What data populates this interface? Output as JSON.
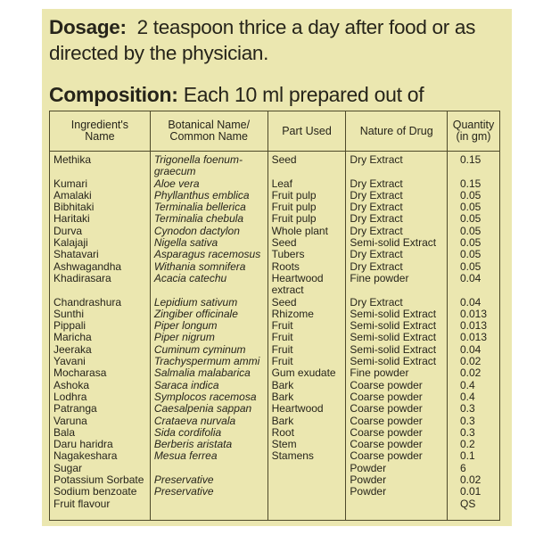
{
  "dosage": {
    "label": "Dosage:",
    "text": "2 teaspoon thrice a day after food or as directed by the physician."
  },
  "composition": {
    "label": "Composition:",
    "text": "Each 10 ml prepared out of"
  },
  "table": {
    "headers": [
      "Ingredient's\nName",
      "Botanical Name/\nCommon Name",
      "Part Used",
      "Nature of Drug",
      "Quantity\n(in gm)"
    ],
    "rows": [
      [
        "Methika",
        "Trigonella foenum-\ngraecum",
        "Seed",
        "Dry Extract",
        "0.15"
      ],
      [
        "Kumari",
        "Aloe vera",
        "Leaf",
        "Dry Extract",
        "0.15"
      ],
      [
        "Amalaki",
        "Phyllanthus emblica",
        "Fruit pulp",
        "Dry Extract",
        "0.05"
      ],
      [
        "Bibhitaki",
        "Terminalia bellerica",
        "Fruit pulp",
        "Dry Extract",
        "0.05"
      ],
      [
        "Haritaki",
        "Terminalia chebula",
        "Fruit pulp",
        "Dry Extract",
        "0.05"
      ],
      [
        "Durva",
        "Cynodon dactylon",
        "Whole plant",
        "Dry Extract",
        "0.05"
      ],
      [
        "Kalajaji",
        "Nigella sativa",
        "Seed",
        "Semi-solid Extract",
        "0.05"
      ],
      [
        "Shatavari",
        "Asparagus racemosus",
        "Tubers",
        "Dry Extract",
        "0.05"
      ],
      [
        "Ashwagandha",
        "Withania somnifera",
        "Roots",
        "Dry Extract",
        "0.05"
      ],
      [
        "Khadirasara",
        "Acacia catechu",
        "Heartwood\nextract",
        "Fine powder",
        "0.04"
      ],
      [
        "Chandrashura",
        "Lepidium sativum",
        "Seed",
        "Dry Extract",
        "0.04"
      ],
      [
        "Sunthi",
        "Zingiber officinale",
        "Rhizome",
        "Semi-solid Extract",
        "0.013"
      ],
      [
        "Pippali",
        "Piper longum",
        "Fruit",
        "Semi-solid Extract",
        "0.013"
      ],
      [
        "Maricha",
        "Piper nigrum",
        "Fruit",
        "Semi-solid Extract",
        "0.013"
      ],
      [
        "Jeeraka",
        "Cuminum cyminum",
        "Fruit",
        "Semi-solid Extract",
        "0.04"
      ],
      [
        "Yavani",
        "Trachyspermum ammi",
        "Fruit",
        "Semi-solid Extract",
        "0.02"
      ],
      [
        "Mocharasa",
        "Salmalia malabarica",
        "Gum exudate",
        "Fine powder",
        "0.02"
      ],
      [
        "Ashoka",
        "Saraca indica",
        "Bark",
        "Coarse powder",
        "0.4"
      ],
      [
        "Lodhra",
        "Symplocos racemosa",
        "Bark",
        "Coarse powder",
        "0.4"
      ],
      [
        "Patranga",
        "Caesalpenia sappan",
        "Heartwood",
        "Coarse powder",
        "0.3"
      ],
      [
        "Varuna",
        "Crataeva nurvala",
        "Bark",
        "Coarse powder",
        "0.3"
      ],
      [
        "Bala",
        "Sida cordifolia",
        "Root",
        "Coarse powder",
        "0.3"
      ],
      [
        "Daru haridra",
        "Berberis aristata",
        "Stem",
        "Coarse powder",
        "0.2"
      ],
      [
        "Nagakeshara",
        "Mesua ferrea",
        "Stamens",
        "Coarse powder",
        "0.1"
      ],
      [
        "Sugar",
        "",
        "",
        "Powder",
        "6"
      ],
      [
        "Potassium Sorbate",
        "Preservative",
        "",
        "Powder",
        "0.02"
      ],
      [
        "Sodium benzoate",
        "Preservative",
        "",
        "Powder",
        "0.01"
      ],
      [
        "Fruit flavour",
        "",
        "",
        "",
        "QS"
      ]
    ]
  },
  "colors": {
    "background": "#ebe7b0",
    "text": "#26241a",
    "rule": "#4e4a2a"
  }
}
